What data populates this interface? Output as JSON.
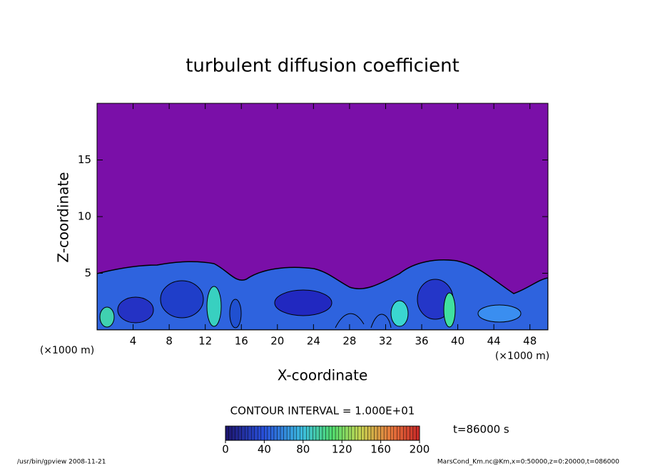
{
  "chart_data": {
    "type": "contour",
    "title": "turbulent diffusion coefficient",
    "x_label": "X-coordinate",
    "y_label": "Z-coordinate",
    "x_unit": "(×1000 m)",
    "xlim": [
      0,
      50
    ],
    "xticks": [
      4,
      8,
      12,
      16,
      20,
      24,
      28,
      32,
      36,
      40,
      44,
      48
    ],
    "ylim": [
      0,
      20
    ],
    "yticks": [
      5,
      10,
      15
    ],
    "contour_interval": "CONTOUR INTERVAL = 1.000E+01",
    "time_label": "t=86000 s",
    "colorbar": {
      "lim": [
        0,
        200
      ],
      "ticks": [
        0,
        40,
        80,
        120,
        160,
        200
      ]
    },
    "footer_left": "/usr/bin/gpview   2008-11-21",
    "footer_right": "MarsCond_Km.nc@Km,x=0:50000,z=0:20000,t=086000"
  }
}
